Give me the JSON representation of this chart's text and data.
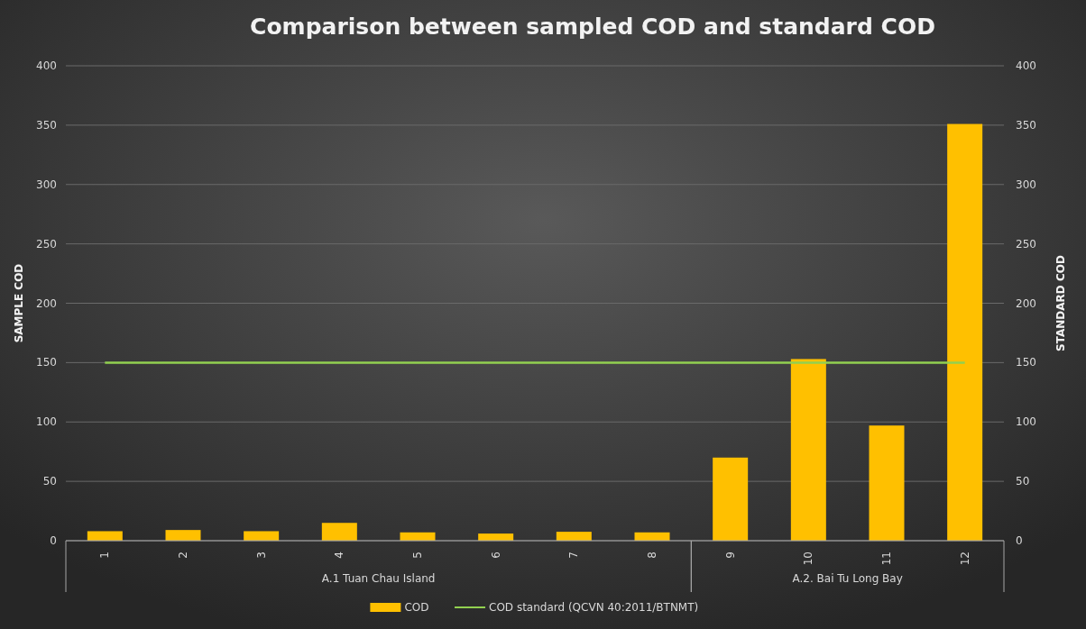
{
  "chart_data": {
    "type": "bar",
    "title": "Comparison between sampled COD and standard COD",
    "ylabel": "SAMPLE COD",
    "y2label": "STANDARD COD",
    "categories": [
      "1",
      "2",
      "3",
      "4",
      "5",
      "6",
      "7",
      "8",
      "9",
      "10",
      "11",
      "12"
    ],
    "series": [
      {
        "name": "COD",
        "color": "#ffc000",
        "values": [
          8,
          9,
          8,
          15,
          7,
          6,
          7.5,
          7,
          70,
          153,
          97,
          351
        ]
      },
      {
        "name": "COD standard (QCVN 40:2011/BTNMT)",
        "type": "line",
        "axis": "y2",
        "color": "#92d050",
        "values": [
          150,
          150,
          150,
          150,
          150,
          150,
          150,
          150,
          150,
          150,
          150,
          150
        ]
      }
    ],
    "ylim": [
      0,
      400
    ],
    "yticks": [
      0,
      50,
      100,
      150,
      200,
      250,
      300,
      350,
      400
    ],
    "y2lim": [
      0,
      400
    ],
    "y2ticks": [
      0,
      50,
      100,
      150,
      200,
      250,
      300,
      350,
      400
    ],
    "annotations": [
      "A.1 Tuan Chau Island",
      "A.2. Bai Tu Long Bay"
    ],
    "grid": "y",
    "legend": "bottom"
  }
}
